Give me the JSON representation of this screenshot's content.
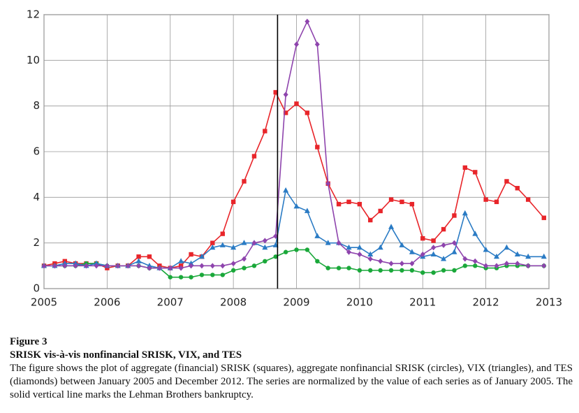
{
  "chart_data": {
    "type": "line",
    "caption_label": "Figure 3",
    "title": "SRISK vis-à-vis nonfinancial SRISK, VIX, and TES",
    "caption": "The figure shows the plot of aggregate (financial) SRISK (squares), aggregate nonfinancial SRISK (circles), VIX (triangles), and TES (diamonds) between January 2005 and December 2012. The series are normalized by the value of each series as of January 2005. The solid vertical line marks the Lehman Brothers bankruptcy.",
    "x": [
      2005.0,
      2005.17,
      2005.33,
      2005.5,
      2005.67,
      2005.83,
      2006.0,
      2006.17,
      2006.33,
      2006.5,
      2006.67,
      2006.83,
      2007.0,
      2007.17,
      2007.33,
      2007.5,
      2007.67,
      2007.83,
      2008.0,
      2008.17,
      2008.33,
      2008.5,
      2008.67,
      2008.83,
      2009.0,
      2009.17,
      2009.33,
      2009.5,
      2009.67,
      2009.83,
      2010.0,
      2010.17,
      2010.33,
      2010.5,
      2010.67,
      2010.83,
      2011.0,
      2011.17,
      2011.33,
      2011.5,
      2011.67,
      2011.83,
      2012.0,
      2012.17,
      2012.33,
      2012.5,
      2012.67,
      2012.92
    ],
    "series": [
      {
        "name": "SRISK",
        "color": "#e8252a",
        "marker": "square",
        "values": [
          1.0,
          1.1,
          1.2,
          1.1,
          1.1,
          1.1,
          0.9,
          1.0,
          1.0,
          1.4,
          1.4,
          1.0,
          0.9,
          1.0,
          1.5,
          1.4,
          2.0,
          2.4,
          3.8,
          4.7,
          5.8,
          6.9,
          8.6,
          7.7,
          8.1,
          7.7,
          6.2,
          4.6,
          3.7,
          3.8,
          3.7,
          3.0,
          3.4,
          3.9,
          3.8,
          3.7,
          2.2,
          2.1,
          2.6,
          3.2,
          5.3,
          5.1,
          3.9,
          3.8,
          4.7,
          4.4,
          3.9,
          3.1
        ]
      },
      {
        "name": "nonfinancial SRISK",
        "color": "#1aa83a",
        "marker": "circle",
        "values": [
          1.0,
          1.0,
          1.0,
          1.0,
          1.1,
          1.1,
          1.0,
          1.0,
          1.0,
          1.0,
          0.9,
          0.9,
          0.5,
          0.5,
          0.5,
          0.6,
          0.6,
          0.6,
          0.8,
          0.9,
          1.0,
          1.2,
          1.4,
          1.6,
          1.7,
          1.7,
          1.2,
          0.9,
          0.9,
          0.9,
          0.8,
          0.8,
          0.8,
          0.8,
          0.8,
          0.8,
          0.7,
          0.7,
          0.8,
          0.8,
          1.0,
          1.0,
          0.9,
          0.9,
          1.0,
          1.0,
          1.0,
          1.0
        ]
      },
      {
        "name": "VIX",
        "color": "#2a7bc4",
        "marker": "triangle",
        "values": [
          1.0,
          1.0,
          1.1,
          1.1,
          1.0,
          1.1,
          1.0,
          1.0,
          1.0,
          1.2,
          1.0,
          0.9,
          0.9,
          1.2,
          1.1,
          1.4,
          1.8,
          1.9,
          1.8,
          2.0,
          2.0,
          1.8,
          1.9,
          4.3,
          3.6,
          3.4,
          2.3,
          2.0,
          2.0,
          1.8,
          1.8,
          1.5,
          1.8,
          2.7,
          1.9,
          1.6,
          1.4,
          1.5,
          1.3,
          1.6,
          3.3,
          2.4,
          1.7,
          1.4,
          1.8,
          1.5,
          1.4,
          1.4
        ]
      },
      {
        "name": "TES",
        "color": "#8e44ad",
        "marker": "diamond",
        "values": [
          1.0,
          1.0,
          1.0,
          1.0,
          1.0,
          1.0,
          1.0,
          1.0,
          1.0,
          1.0,
          0.9,
          0.9,
          0.9,
          0.9,
          1.0,
          1.0,
          1.0,
          1.0,
          1.1,
          1.3,
          2.0,
          2.1,
          2.3,
          8.5,
          10.7,
          11.7,
          10.7,
          4.6,
          2.0,
          1.6,
          1.5,
          1.3,
          1.2,
          1.1,
          1.1,
          1.1,
          1.5,
          1.8,
          1.9,
          2.0,
          1.3,
          1.2,
          1.0,
          1.0,
          1.1,
          1.1,
          1.0,
          1.0
        ]
      }
    ],
    "xlim": [
      2005,
      2013
    ],
    "xticks": [
      2005,
      2006,
      2007,
      2008,
      2009,
      2010,
      2011,
      2012,
      2013
    ],
    "ylim": [
      0,
      12
    ],
    "yticks": [
      0,
      2,
      4,
      6,
      8,
      10,
      12
    ],
    "grid": true,
    "vline": 2008.7
  }
}
